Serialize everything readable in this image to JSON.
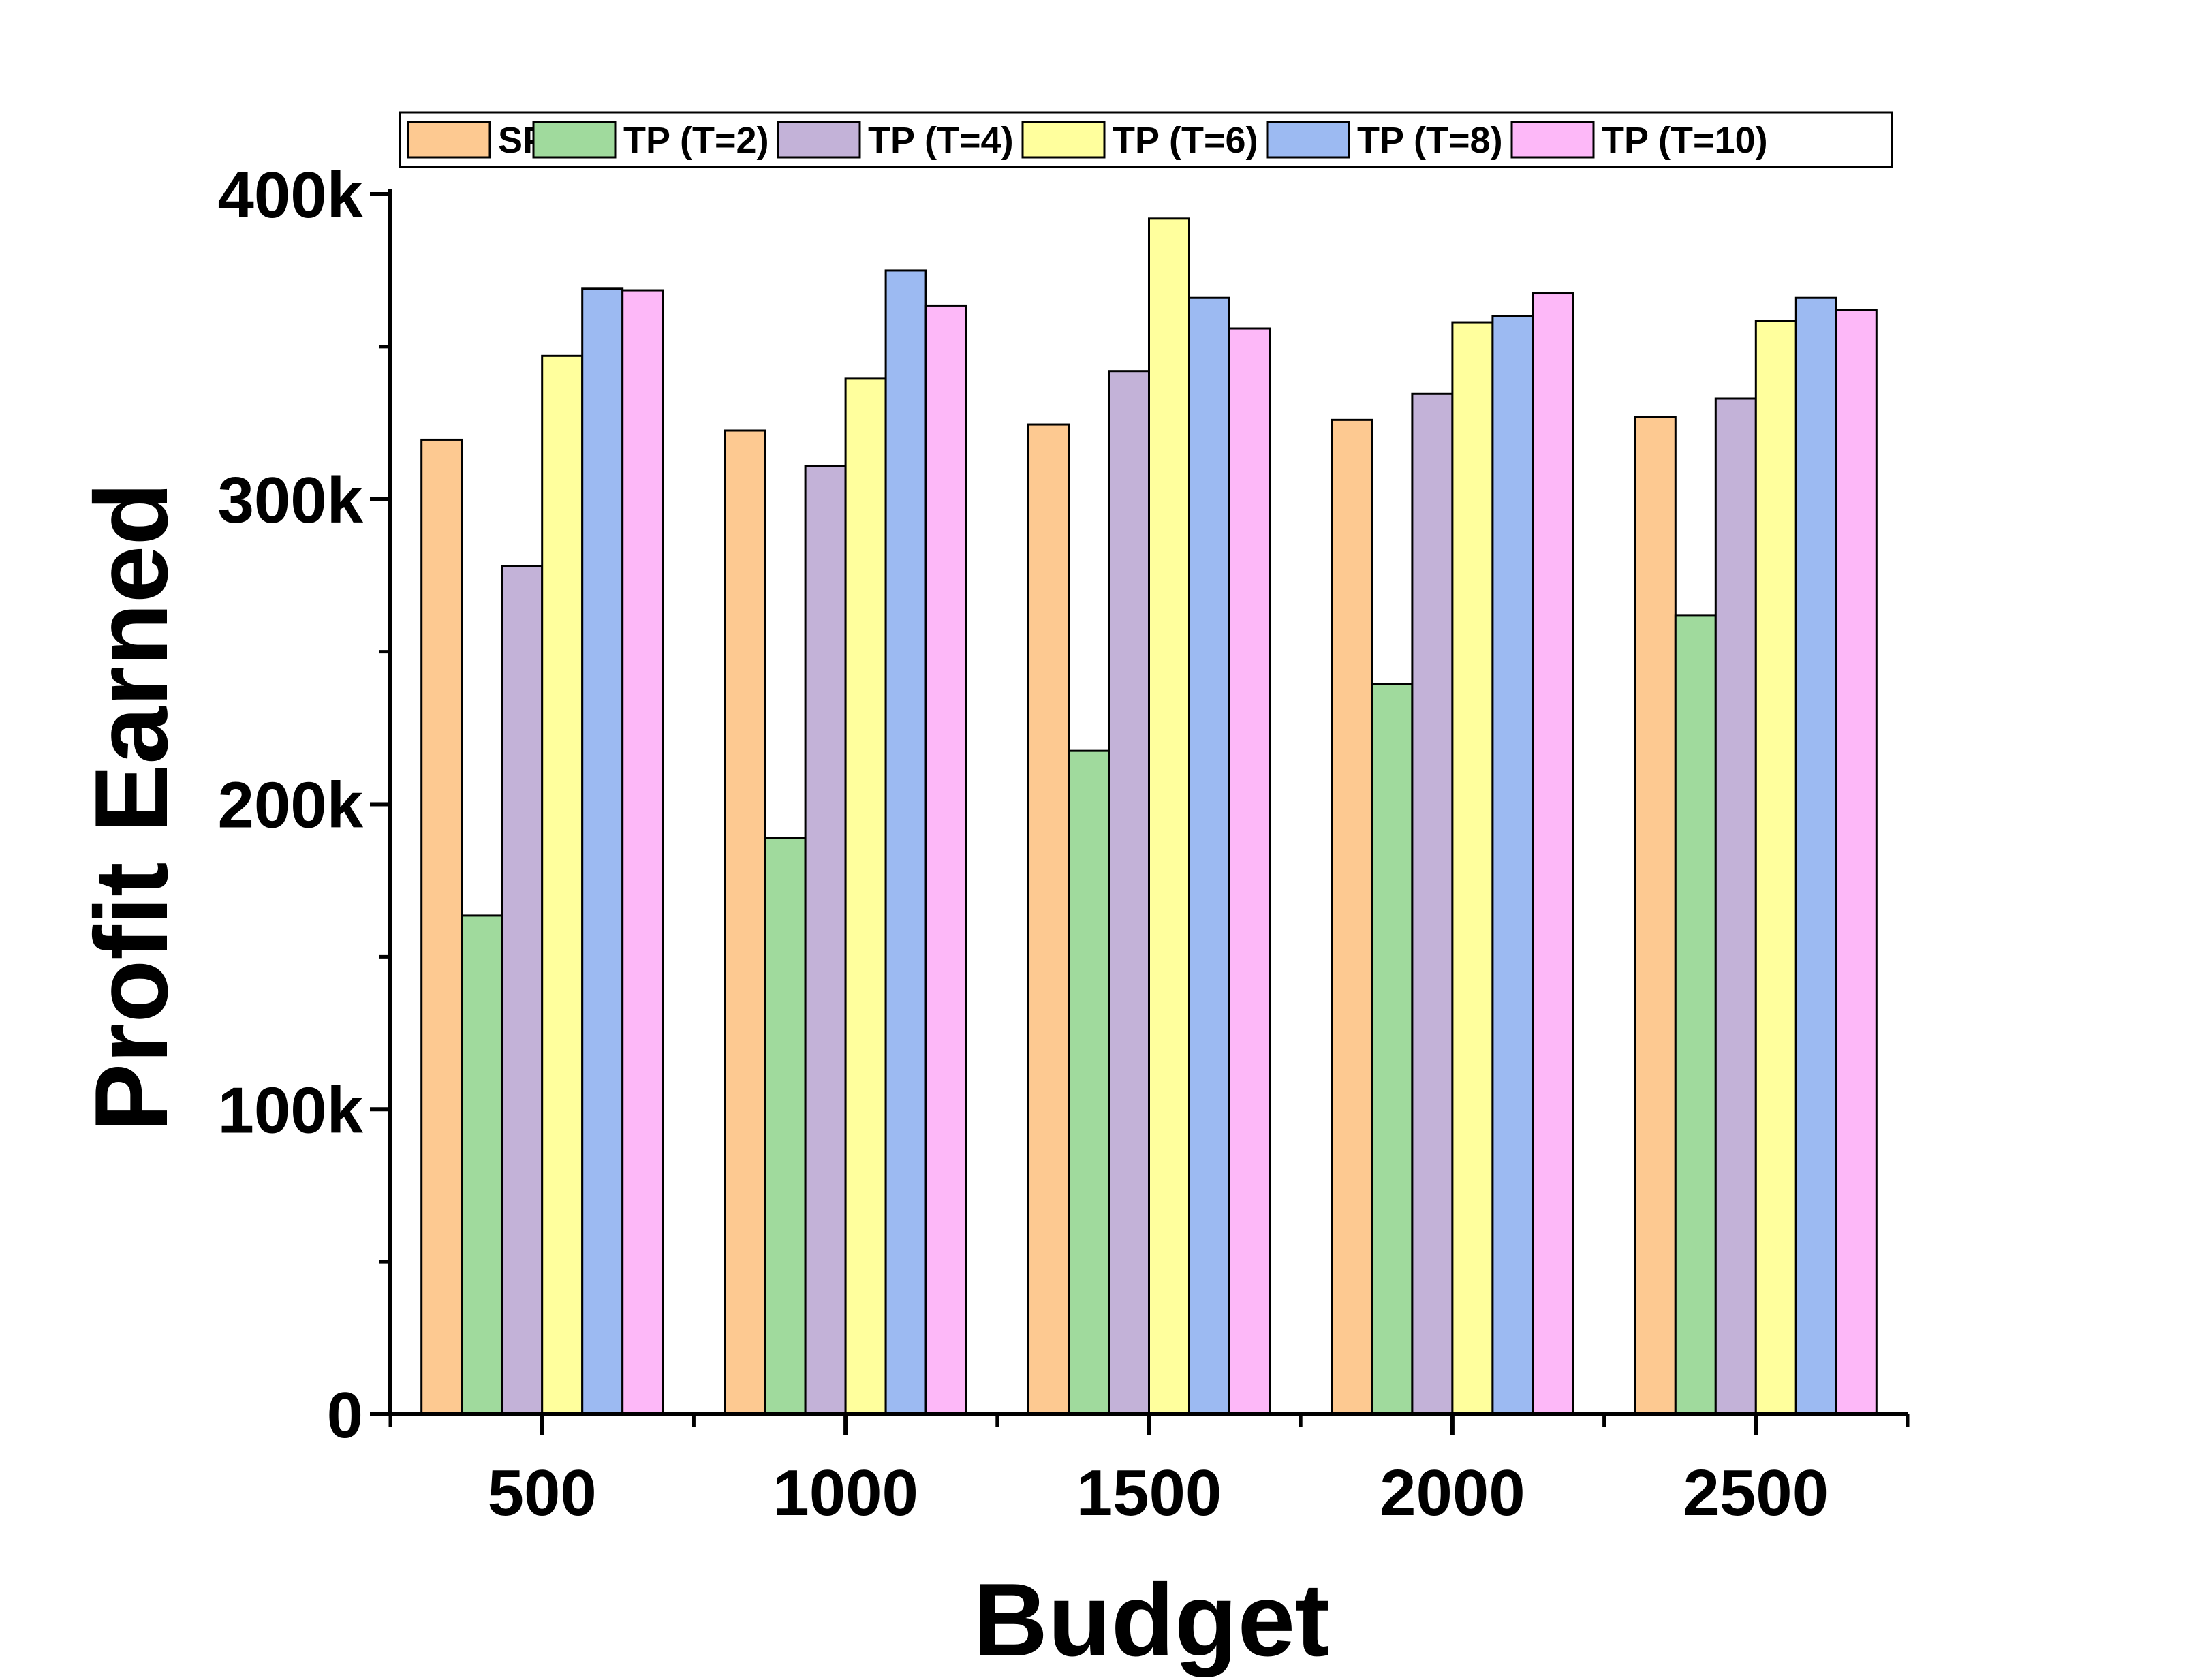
{
  "chart_data": {
    "type": "bar",
    "xlabel": "Budget",
    "ylabel": "Profit Earned",
    "categories": [
      "500",
      "1000",
      "1500",
      "2000",
      "2500"
    ],
    "ylim": [
      0,
      400000
    ],
    "yticks": [
      0,
      100000,
      200000,
      300000,
      400000
    ],
    "ytick_labels": [
      "0",
      "100k",
      "200k",
      "300k",
      "400k"
    ],
    "legend_position": "top",
    "grid": false,
    "series": [
      {
        "name": "SP",
        "color": "#FDC991",
        "values": [
          319500,
          322500,
          324500,
          326000,
          327000
        ]
      },
      {
        "name": "TP (T=2)",
        "color": "#A0DA9D",
        "values": [
          163500,
          189000,
          217500,
          239500,
          262000
        ]
      },
      {
        "name": "TP (T=4)",
        "color": "#C3B2D8",
        "values": [
          278000,
          311000,
          342000,
          334500,
          333000
        ]
      },
      {
        "name": "TP (T=6)",
        "color": "#FFFF9D",
        "values": [
          347000,
          339500,
          392000,
          358000,
          358500
        ]
      },
      {
        "name": "TP (T=8)",
        "color": "#9CBAF2",
        "values": [
          369000,
          375000,
          366000,
          360000,
          366000
        ]
      },
      {
        "name": "TP (T=10)",
        "color": "#FDB8F8",
        "values": [
          368500,
          363500,
          356000,
          367500,
          362000
        ]
      }
    ]
  }
}
